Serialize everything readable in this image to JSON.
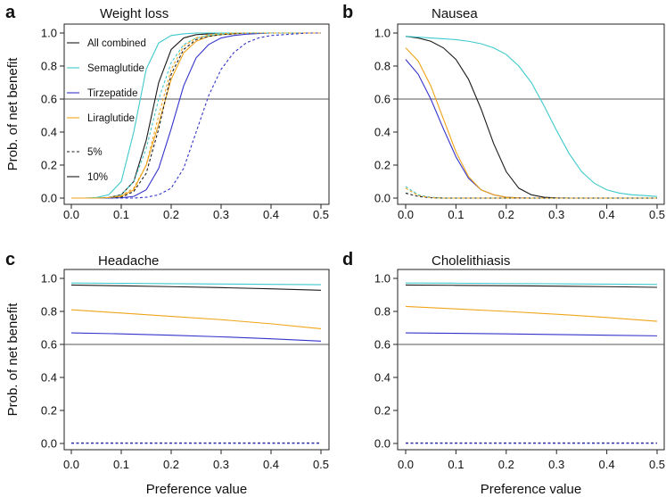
{
  "shared": {
    "xlabel": "Preference value",
    "ylabel": "Prob. of net benefit",
    "x_ticks": [
      "0.0",
      "0.1",
      "0.2",
      "0.3",
      "0.4",
      "0.5"
    ],
    "y_ticks": [
      "0.0",
      "0.2",
      "0.4",
      "0.6",
      "0.8",
      "1.0"
    ],
    "colors": {
      "all_combined": "#1a1a1a",
      "semaglutide": "#3ec9cc",
      "tirzepatide": "#3333cc",
      "liraglutide": "#f0a418",
      "reference": "#555555"
    }
  },
  "legend": {
    "items": [
      {
        "label": "All combined",
        "color": "#1a1a1a",
        "style": "solid"
      },
      {
        "label": "Semaglutide",
        "color": "#3ec9cc",
        "style": "solid"
      },
      {
        "label": "Tirzepatide",
        "color": "#3333cc",
        "style": "solid"
      },
      {
        "label": "Liraglutide",
        "color": "#f0a418",
        "style": "solid"
      },
      {
        "label": "5%",
        "color": "#1a1a1a",
        "style": "dashed"
      },
      {
        "label": "10%",
        "color": "#1a1a1a",
        "style": "solid"
      }
    ]
  },
  "chart_data": [
    {
      "letter": "a",
      "title": "Weight loss",
      "type": "line",
      "xlabel": "",
      "ylabel": "Prob. of net benefit",
      "xlim": [
        0,
        0.5
      ],
      "ylim": [
        0,
        1
      ],
      "reference_line": 0.6,
      "x": [
        0,
        0.025,
        0.05,
        0.075,
        0.1,
        0.125,
        0.15,
        0.175,
        0.2,
        0.225,
        0.25,
        0.275,
        0.3,
        0.325,
        0.35,
        0.375,
        0.4,
        0.425,
        0.45,
        0.475,
        0.5
      ],
      "series": [
        {
          "name": "All combined 10%",
          "color": "#1a1a1a",
          "dashed": false,
          "values": [
            0,
            0,
            0,
            0.003,
            0.02,
            0.1,
            0.35,
            0.7,
            0.9,
            0.97,
            0.99,
            0.995,
            1,
            1,
            1,
            1,
            1,
            1,
            1,
            1,
            1
          ]
        },
        {
          "name": "Semaglutide 10%",
          "color": "#3ec9cc",
          "dashed": false,
          "values": [
            0,
            0,
            0.003,
            0.02,
            0.1,
            0.4,
            0.78,
            0.94,
            0.985,
            0.995,
            1,
            1,
            1,
            1,
            1,
            1,
            1,
            1,
            1,
            1,
            1
          ]
        },
        {
          "name": "Tirzepatide 10%",
          "color": "#3333cc",
          "dashed": false,
          "values": [
            0,
            0,
            0,
            0,
            0.002,
            0.01,
            0.05,
            0.18,
            0.42,
            0.68,
            0.85,
            0.93,
            0.97,
            0.985,
            0.993,
            0.997,
            1,
            1,
            1,
            1,
            1
          ]
        },
        {
          "name": "Liraglutide 10%",
          "color": "#f0a418",
          "dashed": false,
          "values": [
            0,
            0,
            0,
            0.002,
            0.01,
            0.05,
            0.2,
            0.45,
            0.72,
            0.88,
            0.95,
            0.98,
            0.99,
            0.995,
            1,
            1,
            1,
            1,
            1,
            1,
            1
          ]
        },
        {
          "name": "All combined 5%",
          "color": "#1a1a1a",
          "dashed": true,
          "values": [
            0,
            0,
            0,
            0,
            0.005,
            0.04,
            0.15,
            0.42,
            0.75,
            0.9,
            0.96,
            0.98,
            0.99,
            0.995,
            1,
            1,
            1,
            1,
            1,
            1,
            1
          ]
        },
        {
          "name": "Semaglutide 5%",
          "color": "#3ec9cc",
          "dashed": true,
          "values": [
            0,
            0,
            0,
            0.003,
            0.02,
            0.1,
            0.3,
            0.6,
            0.82,
            0.93,
            0.97,
            0.985,
            0.993,
            1,
            1,
            1,
            1,
            1,
            1,
            1,
            1
          ]
        },
        {
          "name": "Tirzepatide 5%",
          "color": "#3333cc",
          "dashed": true,
          "values": [
            0,
            0,
            0,
            0,
            0,
            0,
            0.005,
            0.02,
            0.06,
            0.18,
            0.4,
            0.62,
            0.78,
            0.88,
            0.94,
            0.97,
            0.985,
            0.99,
            0.995,
            1,
            1
          ]
        },
        {
          "name": "Liraglutide 5%",
          "color": "#f0a418",
          "dashed": true,
          "values": [
            0,
            0,
            0,
            0.003,
            0.015,
            0.06,
            0.2,
            0.5,
            0.78,
            0.92,
            0.97,
            0.99,
            0.995,
            1,
            1,
            1,
            1,
            1,
            1,
            1,
            1
          ]
        }
      ]
    },
    {
      "letter": "b",
      "title": "Nausea",
      "type": "line",
      "xlabel": "",
      "ylabel": "",
      "xlim": [
        0,
        0.5
      ],
      "ylim": [
        0,
        1
      ],
      "reference_line": 0.6,
      "x": [
        0,
        0.025,
        0.05,
        0.075,
        0.1,
        0.125,
        0.15,
        0.175,
        0.2,
        0.225,
        0.25,
        0.275,
        0.3,
        0.325,
        0.35,
        0.375,
        0.4,
        0.425,
        0.45,
        0.475,
        0.5
      ],
      "series": [
        {
          "name": "All combined",
          "color": "#1a1a1a",
          "dashed": false,
          "values": [
            0.98,
            0.97,
            0.95,
            0.91,
            0.84,
            0.72,
            0.54,
            0.33,
            0.16,
            0.06,
            0.02,
            0.005,
            0.001,
            0,
            0,
            0,
            0,
            0,
            0,
            0,
            0
          ]
        },
        {
          "name": "Semaglutide",
          "color": "#3ec9cc",
          "dashed": false,
          "values": [
            0.98,
            0.975,
            0.97,
            0.965,
            0.96,
            0.95,
            0.935,
            0.91,
            0.87,
            0.8,
            0.7,
            0.56,
            0.41,
            0.27,
            0.16,
            0.09,
            0.05,
            0.03,
            0.02,
            0.015,
            0.01
          ]
        },
        {
          "name": "Tirzepatide",
          "color": "#3333cc",
          "dashed": false,
          "values": [
            0.84,
            0.75,
            0.6,
            0.42,
            0.25,
            0.12,
            0.05,
            0.02,
            0.005,
            0.001,
            0,
            0,
            0,
            0,
            0,
            0,
            0,
            0,
            0,
            0,
            0
          ]
        },
        {
          "name": "Liraglutide",
          "color": "#f0a418",
          "dashed": false,
          "values": [
            0.91,
            0.83,
            0.68,
            0.48,
            0.28,
            0.13,
            0.05,
            0.02,
            0.005,
            0.001,
            0,
            0,
            0,
            0,
            0,
            0,
            0,
            0,
            0,
            0,
            0
          ]
        },
        {
          "name": "All combined 5%",
          "color": "#1a1a1a",
          "dashed": true,
          "values": [
            0.03,
            0.01,
            0.002,
            0,
            0,
            0,
            0,
            0,
            0,
            0,
            0,
            0,
            0,
            0,
            0,
            0,
            0,
            0,
            0,
            0,
            0
          ]
        },
        {
          "name": "Semaglutide 5%",
          "color": "#3ec9cc",
          "dashed": true,
          "values": [
            0.07,
            0.02,
            0.005,
            0,
            0,
            0,
            0,
            0,
            0,
            0,
            0,
            0,
            0,
            0,
            0,
            0,
            0,
            0,
            0,
            0,
            0
          ]
        },
        {
          "name": "Liraglutide 5%",
          "color": "#f0a418",
          "dashed": true,
          "values": [
            0.06,
            0.015,
            0.003,
            0,
            0,
            0,
            0,
            0,
            0,
            0,
            0,
            0,
            0,
            0,
            0,
            0,
            0,
            0,
            0,
            0,
            0
          ]
        }
      ]
    },
    {
      "letter": "c",
      "title": "Headache",
      "type": "line",
      "xlabel": "Preference value",
      "ylabel": "Prob. of net benefit",
      "xlim": [
        0,
        0.5
      ],
      "ylim": [
        0,
        1
      ],
      "reference_line": 0.6,
      "x": [
        0,
        0.1,
        0.2,
        0.3,
        0.4,
        0.5
      ],
      "series": [
        {
          "name": "Semaglutide",
          "color": "#3ec9cc",
          "dashed": false,
          "values": [
            0.972,
            0.97,
            0.968,
            0.966,
            0.964,
            0.962
          ]
        },
        {
          "name": "All combined",
          "color": "#1a1a1a",
          "dashed": false,
          "values": [
            0.96,
            0.955,
            0.95,
            0.944,
            0.937,
            0.928
          ]
        },
        {
          "name": "Liraglutide",
          "color": "#f0a418",
          "dashed": false,
          "values": [
            0.81,
            0.79,
            0.77,
            0.75,
            0.725,
            0.695
          ]
        },
        {
          "name": "Tirzepatide",
          "color": "#3333cc",
          "dashed": false,
          "values": [
            0.67,
            0.664,
            0.656,
            0.646,
            0.634,
            0.62
          ]
        },
        {
          "name": "All combined 5%",
          "color": "#1a1a1a",
          "dashed": true,
          "values": [
            0.003,
            0.003,
            0.003,
            0.003,
            0.003,
            0.003
          ]
        },
        {
          "name": "Tirzepatide 5%",
          "color": "#3333cc",
          "dashed": true,
          "values": [
            0.001,
            0.001,
            0.001,
            0.001,
            0.001,
            0.001
          ]
        }
      ]
    },
    {
      "letter": "d",
      "title": "Cholelithiasis",
      "type": "line",
      "xlabel": "Preference value",
      "ylabel": "",
      "xlim": [
        0,
        0.5
      ],
      "ylim": [
        0,
        1
      ],
      "reference_line": 0.6,
      "x": [
        0,
        0.1,
        0.2,
        0.3,
        0.4,
        0.5
      ],
      "series": [
        {
          "name": "Semaglutide",
          "color": "#3ec9cc",
          "dashed": false,
          "values": [
            0.972,
            0.971,
            0.969,
            0.967,
            0.965,
            0.963
          ]
        },
        {
          "name": "All combined",
          "color": "#1a1a1a",
          "dashed": false,
          "values": [
            0.96,
            0.958,
            0.956,
            0.953,
            0.95,
            0.946
          ]
        },
        {
          "name": "Liraglutide",
          "color": "#f0a418",
          "dashed": false,
          "values": [
            0.83,
            0.815,
            0.8,
            0.783,
            0.763,
            0.74
          ]
        },
        {
          "name": "Tirzepatide",
          "color": "#3333cc",
          "dashed": false,
          "values": [
            0.67,
            0.667,
            0.664,
            0.66,
            0.656,
            0.652
          ]
        },
        {
          "name": "All combined 5%",
          "color": "#1a1a1a",
          "dashed": true,
          "values": [
            0.003,
            0.003,
            0.003,
            0.003,
            0.003,
            0.003
          ]
        },
        {
          "name": "Tirzepatide 5%",
          "color": "#3333cc",
          "dashed": true,
          "values": [
            0.001,
            0.001,
            0.001,
            0.001,
            0.001,
            0.001
          ]
        }
      ]
    }
  ]
}
